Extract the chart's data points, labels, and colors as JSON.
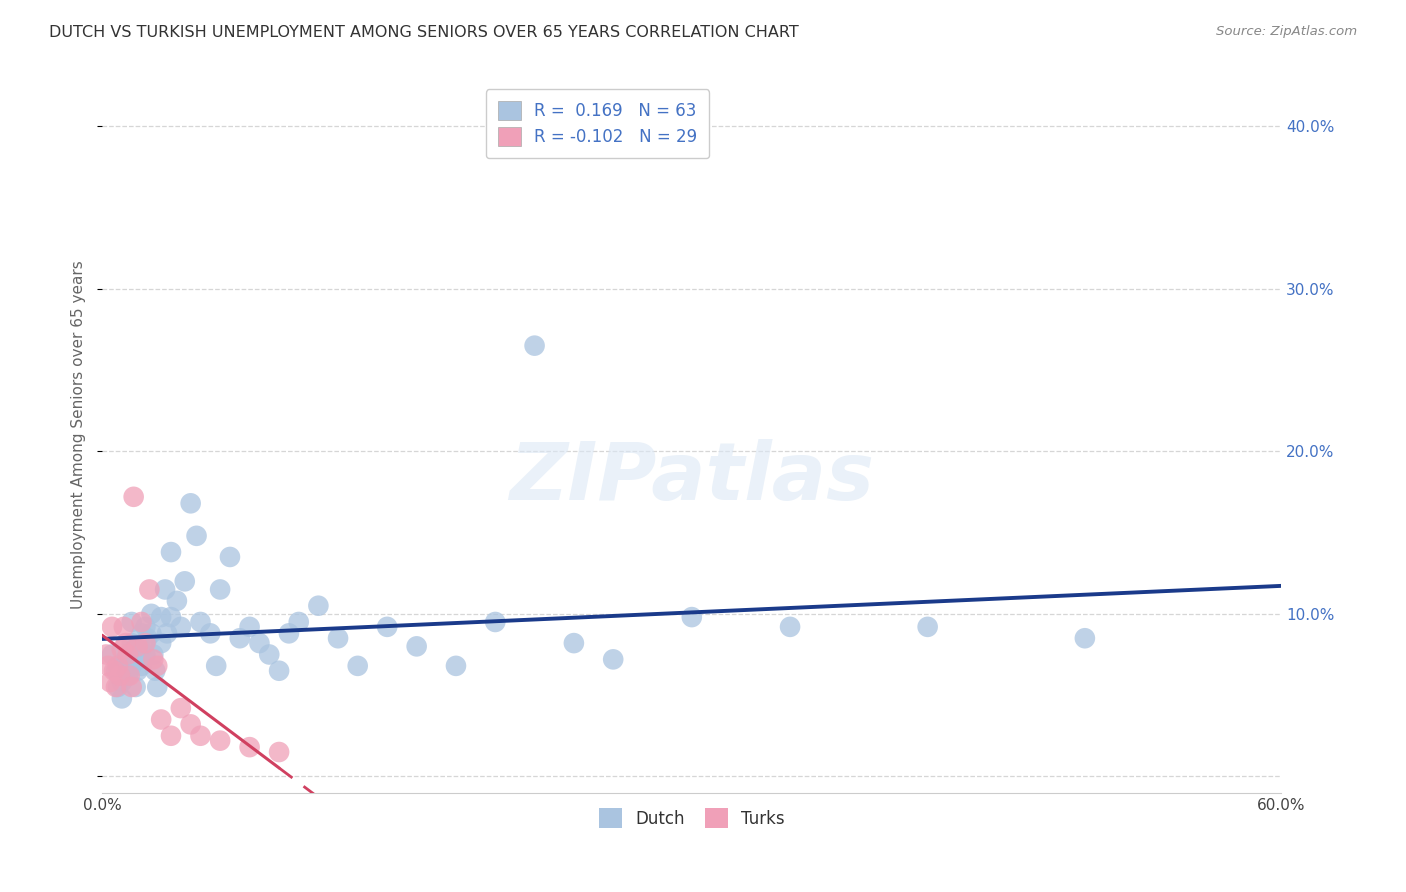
{
  "title": "DUTCH VS TURKISH UNEMPLOYMENT AMONG SENIORS OVER 65 YEARS CORRELATION CHART",
  "source": "Source: ZipAtlas.com",
  "ylabel": "Unemployment Among Seniors over 65 years",
  "xlim": [
    0.0,
    0.6
  ],
  "ylim": [
    -0.01,
    0.43
  ],
  "xticks": [
    0.0,
    0.1,
    0.2,
    0.3,
    0.4,
    0.5,
    0.6
  ],
  "xticklabels": [
    "0.0%",
    "",
    "",
    "",
    "",
    "",
    "60.0%"
  ],
  "yticks": [
    0.0,
    0.1,
    0.2,
    0.3,
    0.4
  ],
  "yticklabels": [
    "",
    "10.0%",
    "20.0%",
    "30.0%",
    "40.0%"
  ],
  "dutch_R": 0.169,
  "dutch_N": 63,
  "turks_R": -0.102,
  "turks_N": 29,
  "blue_color": "#aac4e0",
  "blue_line_color": "#1a3a8a",
  "pink_color": "#f0a0b8",
  "pink_line_color": "#d04060",
  "legend_label_dutch": "Dutch",
  "legend_label_turks": "Turks",
  "background_color": "#ffffff",
  "grid_color": "#cccccc",
  "title_color": "#333333",
  "axis_label_color": "#666666",
  "tick_color": "#4472c4",
  "watermark": "ZIPatlas",
  "dutch_x": [
    0.005,
    0.007,
    0.008,
    0.01,
    0.01,
    0.01,
    0.012,
    0.013,
    0.015,
    0.015,
    0.015,
    0.016,
    0.017,
    0.018,
    0.019,
    0.02,
    0.02,
    0.02,
    0.022,
    0.022,
    0.023,
    0.025,
    0.025,
    0.026,
    0.027,
    0.028,
    0.03,
    0.03,
    0.032,
    0.033,
    0.035,
    0.035,
    0.038,
    0.04,
    0.042,
    0.045,
    0.048,
    0.05,
    0.055,
    0.058,
    0.06,
    0.065,
    0.07,
    0.075,
    0.08,
    0.085,
    0.09,
    0.095,
    0.1,
    0.11,
    0.12,
    0.13,
    0.145,
    0.16,
    0.18,
    0.2,
    0.22,
    0.24,
    0.26,
    0.3,
    0.35,
    0.42,
    0.5
  ],
  "dutch_y": [
    0.075,
    0.065,
    0.055,
    0.068,
    0.058,
    0.048,
    0.072,
    0.062,
    0.095,
    0.082,
    0.068,
    0.078,
    0.055,
    0.065,
    0.072,
    0.088,
    0.078,
    0.068,
    0.092,
    0.075,
    0.085,
    0.1,
    0.088,
    0.075,
    0.065,
    0.055,
    0.098,
    0.082,
    0.115,
    0.088,
    0.138,
    0.098,
    0.108,
    0.092,
    0.12,
    0.168,
    0.148,
    0.095,
    0.088,
    0.068,
    0.115,
    0.135,
    0.085,
    0.092,
    0.082,
    0.075,
    0.065,
    0.088,
    0.095,
    0.105,
    0.085,
    0.068,
    0.092,
    0.08,
    0.068,
    0.095,
    0.265,
    0.082,
    0.072,
    0.098,
    0.092,
    0.092,
    0.085
  ],
  "turks_x": [
    0.002,
    0.003,
    0.004,
    0.005,
    0.006,
    0.007,
    0.008,
    0.009,
    0.01,
    0.011,
    0.012,
    0.013,
    0.014,
    0.015,
    0.016,
    0.018,
    0.02,
    0.022,
    0.024,
    0.026,
    0.028,
    0.03,
    0.035,
    0.04,
    0.045,
    0.05,
    0.06,
    0.075,
    0.09
  ],
  "turks_y": [
    0.075,
    0.068,
    0.058,
    0.092,
    0.065,
    0.055,
    0.068,
    0.062,
    0.078,
    0.092,
    0.082,
    0.075,
    0.062,
    0.055,
    0.172,
    0.08,
    0.095,
    0.082,
    0.115,
    0.072,
    0.068,
    0.035,
    0.025,
    0.042,
    0.032,
    0.025,
    0.022,
    0.018,
    0.015
  ]
}
